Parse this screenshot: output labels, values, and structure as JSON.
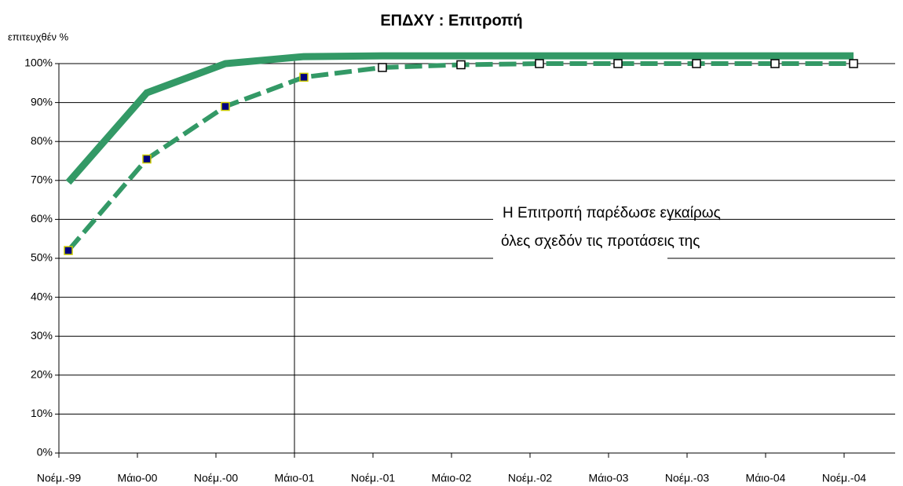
{
  "chart_data": {
    "type": "line",
    "title": "ΕΠΔΧΥ : Επιτροπή",
    "y_label": "επιτευχθέν %",
    "annotation": [
      "Η Επιτροπή παρέδωσε εγκαίρως",
      "όλες σχεδόν τις προτάσεις της"
    ],
    "categories": [
      "Νοέμ.-99",
      "Μάιο-00",
      "Νοέμ.-00",
      "Μάιο-01",
      "Νοέμ.-01",
      "Μάιο-02",
      "Νοέμ.-02",
      "Μάιο-03",
      "Νοέμ.-03",
      "Μάιο-04",
      "Νοέμ.-04"
    ],
    "series": [
      {
        "color": "#339966",
        "values": [
          69.5,
          92.5,
          100,
          101.8,
          102,
          102,
          102,
          102,
          102,
          102,
          102
        ]
      },
      {
        "color": "#339966",
        "values": [
          52,
          75.5,
          89,
          96.5,
          99,
          99.7,
          100,
          100,
          100,
          100,
          100
        ],
        "marker_fill": [
          "#000080",
          "#000080",
          "#000080",
          "#000080",
          "#ffffff",
          "#ffffff",
          "#ffffff",
          "#ffffff",
          "#ffffff",
          "#ffffff",
          "#ffffff"
        ],
        "marker_stroke": [
          "#cccc00",
          "#cccc00",
          "#cccc00",
          "#cccc00",
          "#000000",
          "#000000",
          "#000000",
          "#000000",
          "#000000",
          "#000000",
          "#000000"
        ]
      }
    ],
    "ylim": [
      0,
      100
    ],
    "yticks": [
      {
        "value": 0,
        "label": "0%"
      },
      {
        "value": 10,
        "label": "10%"
      },
      {
        "value": 20,
        "label": "20%"
      },
      {
        "value": 30,
        "label": "30%"
      },
      {
        "value": 40,
        "label": "40%"
      },
      {
        "value": 50,
        "label": "50%"
      },
      {
        "value": 60,
        "label": "60%"
      },
      {
        "value": 70,
        "label": "70%"
      },
      {
        "value": 80,
        "label": "80%"
      },
      {
        "value": 90,
        "label": "90%"
      },
      {
        "value": 100,
        "label": "100%"
      }
    ],
    "grid": true
  }
}
